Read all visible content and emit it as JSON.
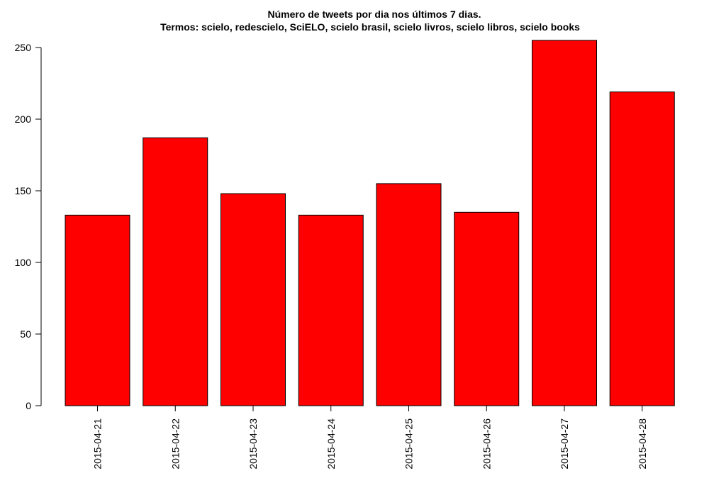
{
  "chart_data": {
    "type": "bar",
    "title": "Número de tweets por dia nos últimos 7 dias.",
    "subtitle": "Termos: scielo, redescielo, SciELO, scielo brasil, scielo livros, scielo libros, scielo books",
    "xlabel": "",
    "ylabel": "",
    "categories": [
      "2015-04-21",
      "2015-04-22",
      "2015-04-23",
      "2015-04-24",
      "2015-04-25",
      "2015-04-26",
      "2015-04-27",
      "2015-04-28"
    ],
    "values": [
      133,
      187,
      148,
      133,
      155,
      135,
      255,
      219
    ],
    "y_ticks": [
      "0",
      "50",
      "100",
      "150",
      "200",
      "250"
    ],
    "ylim": [
      0,
      255
    ],
    "grid": false,
    "legend": "none",
    "bar_color": "#ff0000",
    "bar_border_color": "#000000"
  }
}
